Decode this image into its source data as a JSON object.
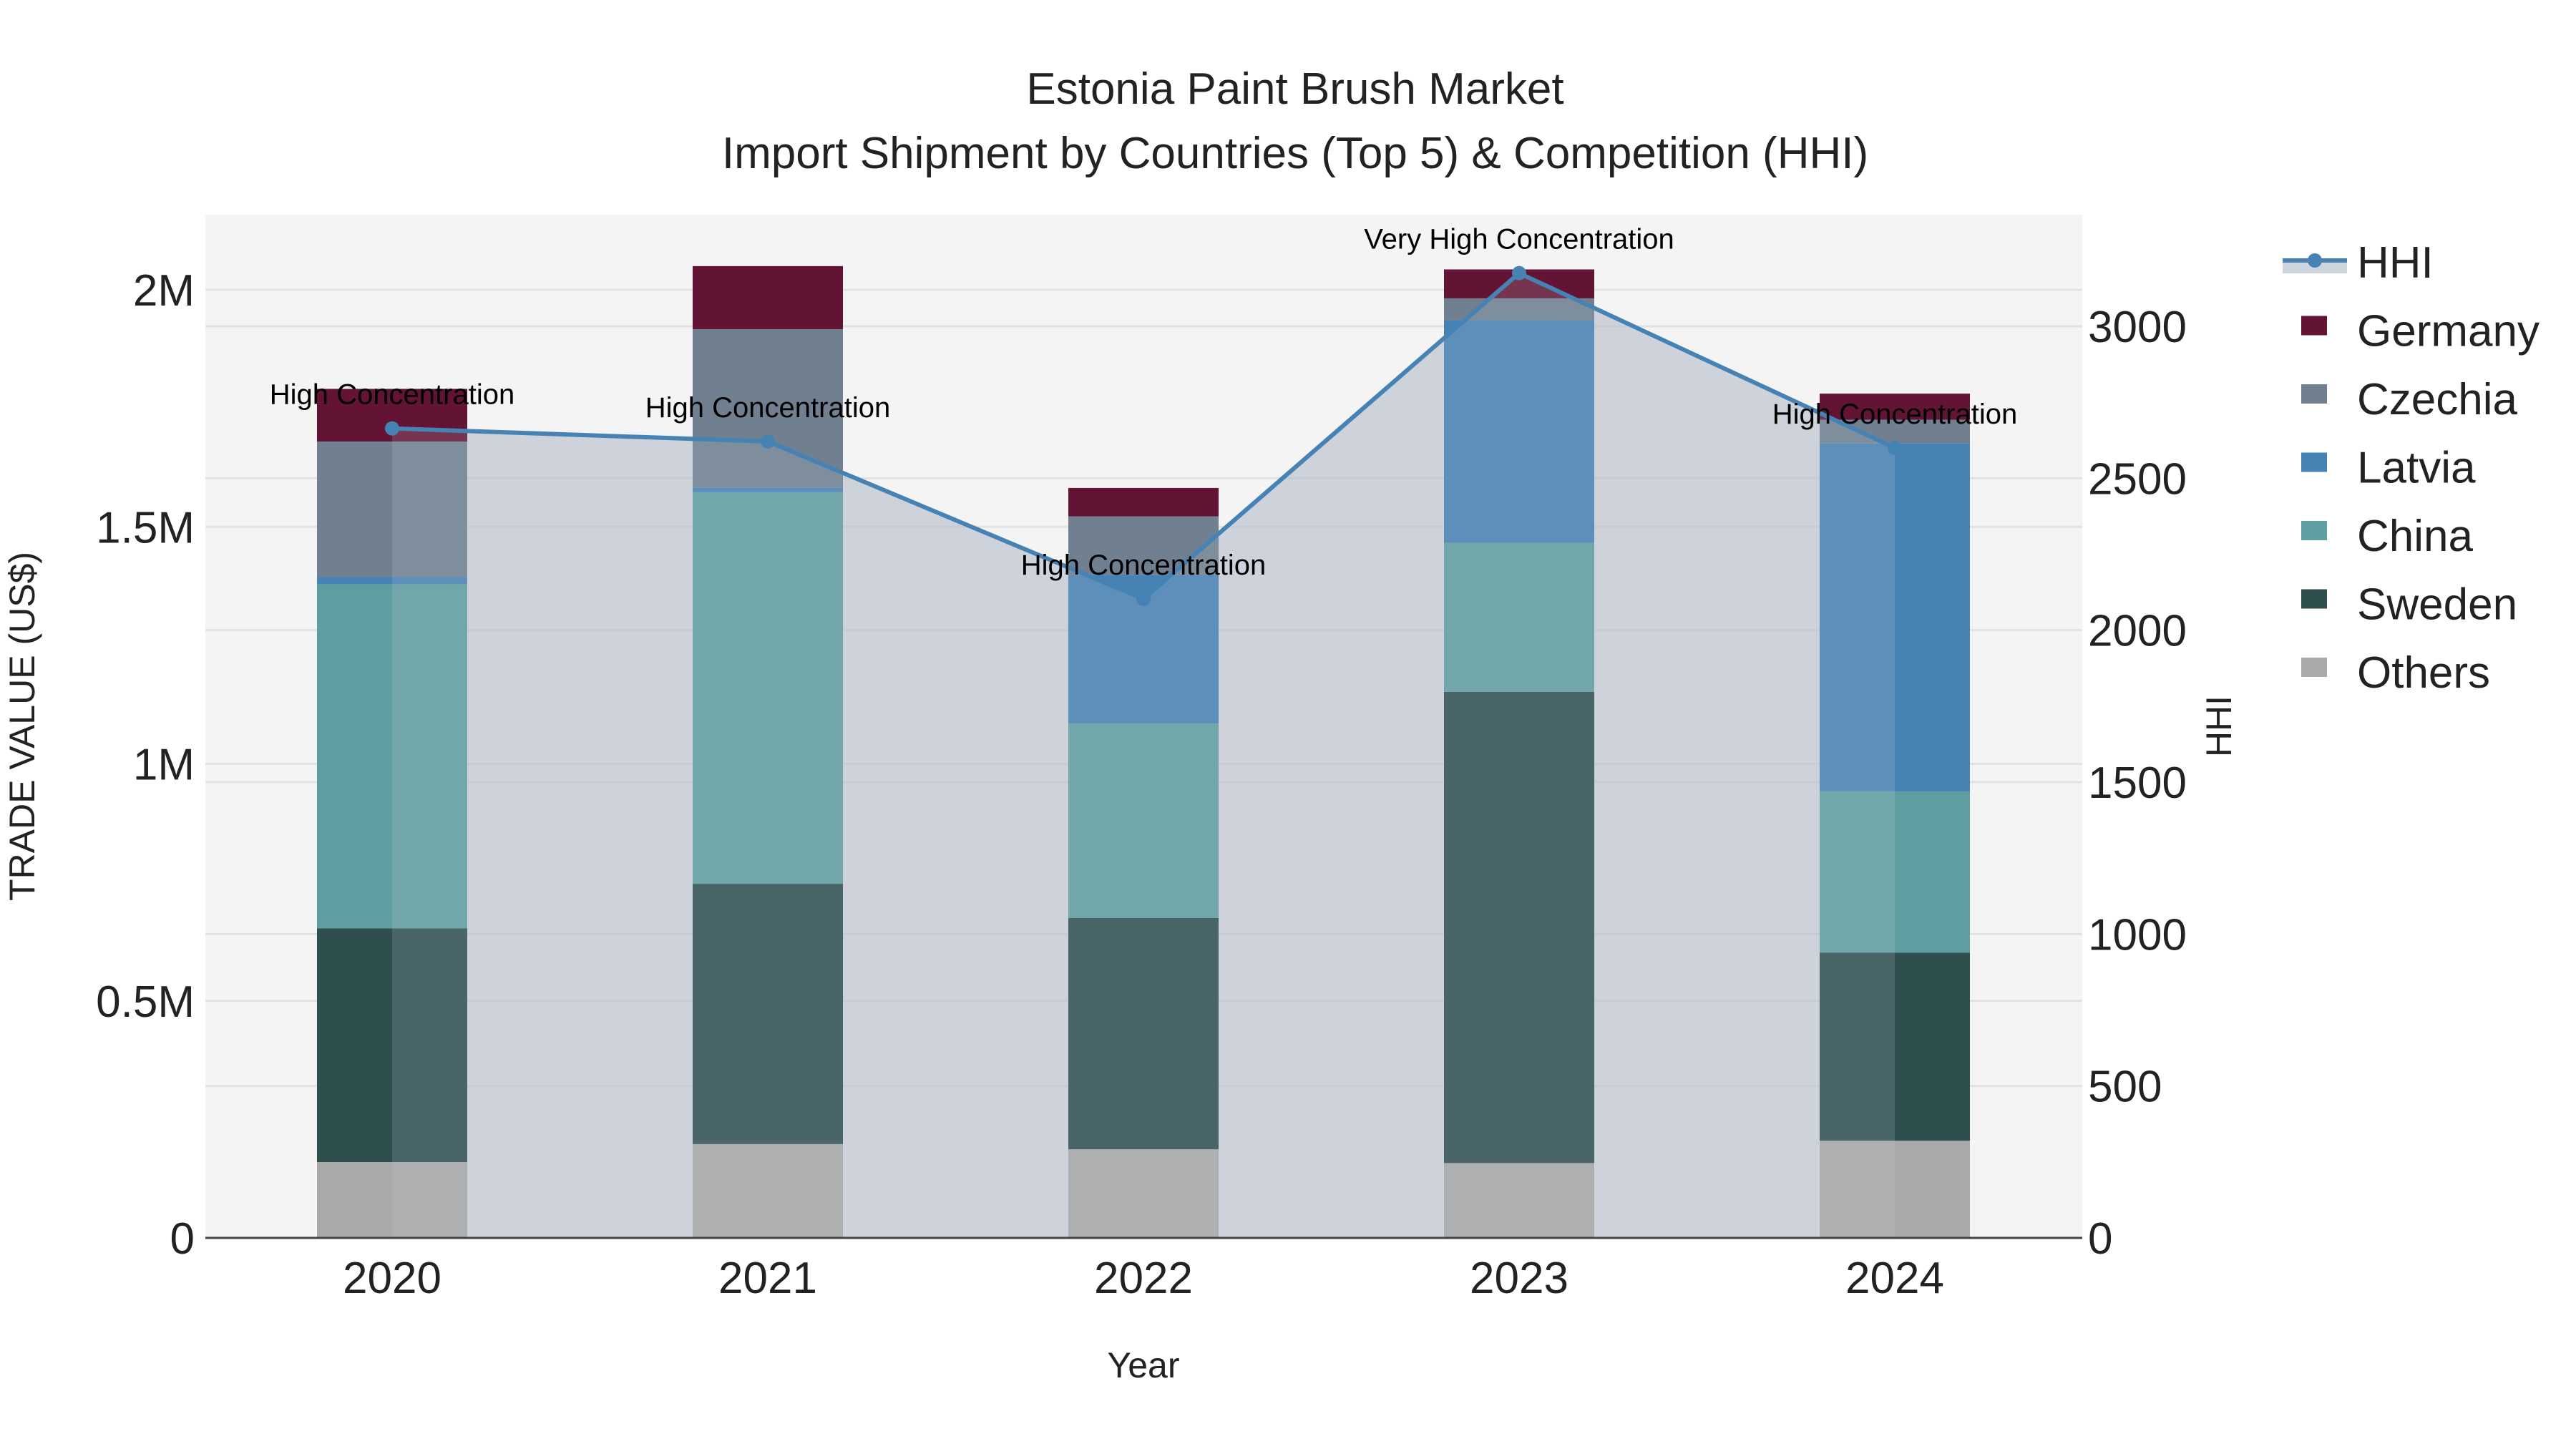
{
  "title": {
    "line1": "Estonia Paint Brush Market",
    "line2": "Import Shipment by Countries (Top 5) & Competition (HHI)"
  },
  "axes": {
    "x_title": "Year",
    "y_left_title": "TRADE VALUE (US$)",
    "y_right_title": "HHI",
    "y_left_ticks": [
      "0",
      "0.5M",
      "1M",
      "1.5M",
      "2M"
    ],
    "y_right_ticks": [
      "0",
      "500",
      "1000",
      "1500",
      "2000",
      "2500",
      "3000"
    ]
  },
  "legend": [
    {
      "name": "HHI",
      "type": "line",
      "color": "#4682B4"
    },
    {
      "name": "Germany",
      "type": "bar",
      "color": "#631434"
    },
    {
      "name": "Czechia",
      "type": "bar",
      "color": "#708090"
    },
    {
      "name": "Latvia",
      "type": "bar",
      "color": "#4682B4"
    },
    {
      "name": "China",
      "type": "bar",
      "color": "#5F9EA0"
    },
    {
      "name": "Sweden",
      "type": "bar",
      "color": "#2F4F4F"
    },
    {
      "name": "Others",
      "type": "bar",
      "color": "#A9A9A9"
    }
  ],
  "colors": {
    "plot_bg": "#F4F4F4",
    "grid": "#E2E2E2",
    "hhi_line": "#4682B4",
    "hhi_fill": "rgba(176,186,200,0.6)"
  },
  "chart_data": {
    "type": "bar",
    "stacked": true,
    "title": "Estonia Paint Brush Market — Import Shipment by Countries (Top 5) & Competition (HHI)",
    "xlabel": "Year",
    "ylabel": "TRADE VALUE (US$)",
    "y2label": "HHI",
    "ylim": [
      0,
      2150000
    ],
    "y2lim": [
      0,
      3370
    ],
    "categories": [
      "2020",
      "2021",
      "2022",
      "2023",
      "2024"
    ],
    "series": [
      {
        "name": "Others",
        "axis": "y",
        "values": [
          160000,
          198000,
          187000,
          158000,
          205000
        ]
      },
      {
        "name": "Sweden",
        "axis": "y",
        "values": [
          493000,
          549000,
          488000,
          994000,
          397000
        ]
      },
      {
        "name": "China",
        "axis": "y",
        "values": [
          726000,
          826000,
          410000,
          314000,
          340000
        ]
      },
      {
        "name": "Latvia",
        "axis": "y",
        "values": [
          15000,
          10000,
          314000,
          470000,
          734000
        ]
      },
      {
        "name": "Czechia",
        "axis": "y",
        "values": [
          286000,
          334000,
          123000,
          46000,
          50000
        ]
      },
      {
        "name": "Germany",
        "axis": "y",
        "values": [
          111000,
          133000,
          60000,
          61000,
          55000
        ]
      },
      {
        "name": "HHI",
        "type": "line",
        "axis": "y2",
        "values": [
          2664,
          2621,
          2103,
          3175,
          2600
        ]
      }
    ],
    "annotations": [
      {
        "x": "2020",
        "text": "High Concentration"
      },
      {
        "x": "2021",
        "text": "High Concentration"
      },
      {
        "x": "2022",
        "text": "High Concentration"
      },
      {
        "x": "2023",
        "text": "Very High Concentration"
      },
      {
        "x": "2024",
        "text": "High Concentration"
      }
    ],
    "legend_position": "right",
    "grid": true
  }
}
